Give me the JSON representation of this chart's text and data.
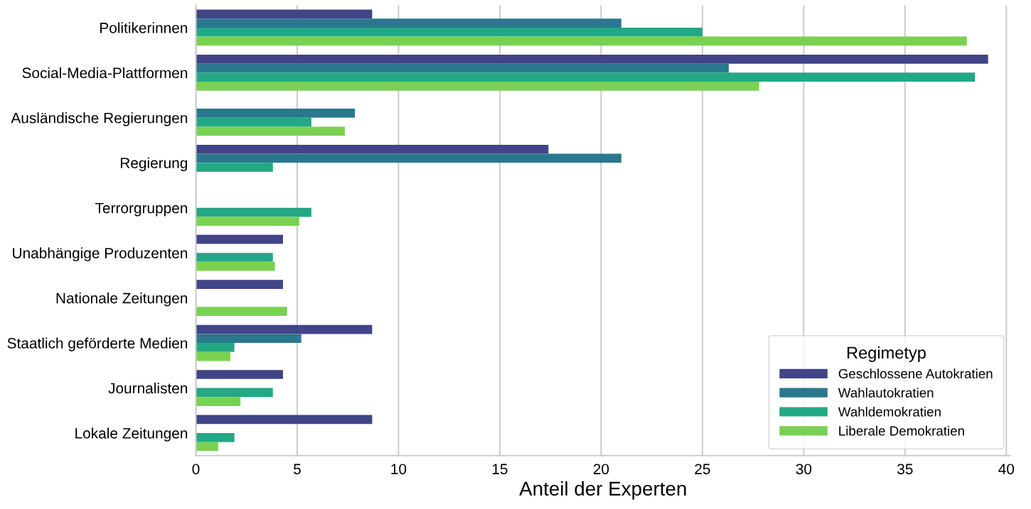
{
  "chart_data": {
    "type": "bar",
    "orientation": "horizontal",
    "xlabel": "Anteil der Experten",
    "legend_title": "Regimetyp",
    "legend": "bottom right",
    "grid": "x",
    "categories": [
      "Politikerinnen",
      "Social-Media-Plattformen",
      "Ausländische Regierungen",
      "Regierung",
      "Terrorgruppen",
      "Unabhängige Produzenten",
      "Nationale Zeitungen",
      "Staatlich geförderte Medien",
      "Journalisten",
      "Lokale Zeitungen"
    ],
    "xlim": [
      0,
      40.2
    ],
    "xticks": [
      0,
      5,
      10,
      15,
      20,
      25,
      30,
      35,
      40
    ],
    "series": [
      {
        "name": "Geschlossene Autokratien",
        "color": "#414487",
        "values": [
          8.7,
          39.1,
          null,
          17.4,
          null,
          4.3,
          4.3,
          8.7,
          4.3,
          8.7
        ]
      },
      {
        "name": "Wahlautokratien",
        "color": "#2a788e",
        "values": [
          21.0,
          26.3,
          7.85,
          21.0,
          null,
          null,
          null,
          5.2,
          null,
          null
        ]
      },
      {
        "name": "Wahldemokratien",
        "color": "#22a884",
        "values": [
          25.0,
          38.45,
          5.7,
          3.8,
          5.7,
          3.8,
          null,
          1.9,
          3.8,
          1.9
        ]
      },
      {
        "name": "Liberale Demokratien",
        "color": "#7ad151",
        "values": [
          38.05,
          27.8,
          7.35,
          null,
          5.1,
          3.9,
          4.5,
          1.7,
          2.2,
          1.1
        ]
      }
    ]
  }
}
